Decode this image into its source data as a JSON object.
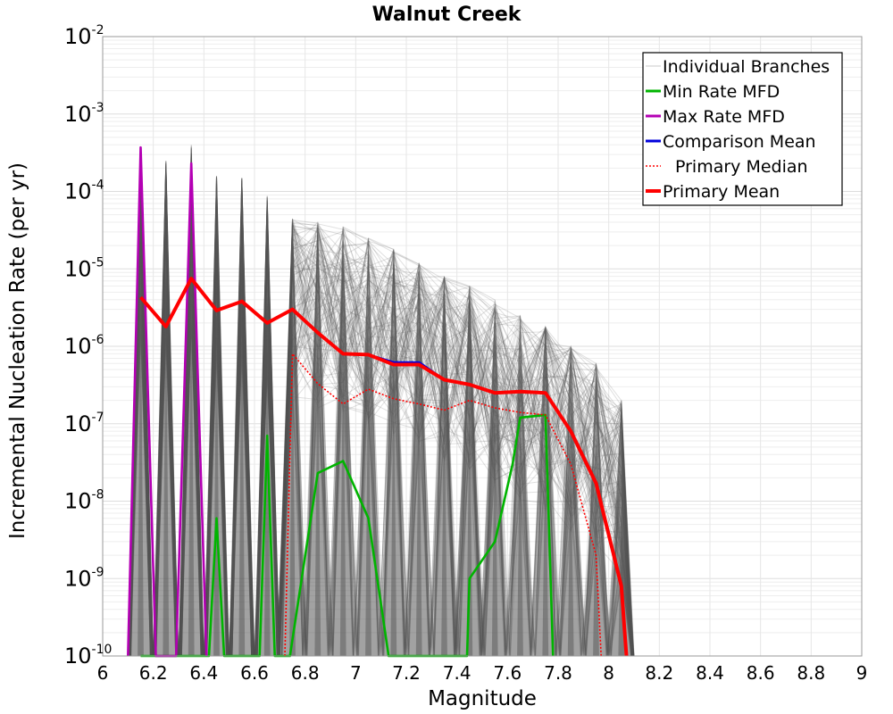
{
  "chart_data": {
    "type": "line",
    "title": "Walnut Creek",
    "xlabel": "Magnitude",
    "ylabel": "Incremental Nucleation Rate (per yr)",
    "xlim": [
      6,
      9
    ],
    "ylim": [
      1e-10,
      0.01
    ],
    "yscale": "log",
    "grid": true,
    "legend_position": "top-right",
    "x_ticks": [
      "6",
      "6.2",
      "6.4",
      "6.6",
      "6.8",
      "7",
      "7.2",
      "7.4",
      "7.6",
      "7.8",
      "8",
      "8.2",
      "8.4",
      "8.6",
      "8.8",
      "9"
    ],
    "y_ticks": [
      {
        "base": "10",
        "exp": "-2",
        "value": 0.01
      },
      {
        "base": "10",
        "exp": "-3",
        "value": 0.001
      },
      {
        "base": "10",
        "exp": "-4",
        "value": 0.0001
      },
      {
        "base": "10",
        "exp": "-5",
        "value": 1e-05
      },
      {
        "base": "10",
        "exp": "-6",
        "value": 1e-06
      },
      {
        "base": "10",
        "exp": "-7",
        "value": 1e-07
      },
      {
        "base": "10",
        "exp": "-8",
        "value": 1e-08
      },
      {
        "base": "10",
        "exp": "-9",
        "value": 1e-09
      },
      {
        "base": "10",
        "exp": "-10",
        "value": 1e-10
      }
    ],
    "legend": [
      {
        "label": "Individual Branches",
        "color": "#c8c8c8",
        "style": "solid"
      },
      {
        "label": "Min Rate MFD",
        "color": "#00b400",
        "style": "solid"
      },
      {
        "label": "Max Rate MFD",
        "color": "#b400b4",
        "style": "solid"
      },
      {
        "label": "Comparison Mean",
        "color": "#0000dc",
        "style": "solid"
      },
      {
        "label": "Primary Median",
        "color": "#ff0000",
        "style": "dotted"
      },
      {
        "label": "Primary Mean",
        "color": "#ff0000",
        "style": "thick"
      }
    ],
    "branch_envelope": {
      "color": "#555555",
      "x": [
        6.15,
        6.25,
        6.35,
        6.45,
        6.55,
        6.65,
        6.75,
        6.85,
        6.95,
        7.05,
        7.15,
        7.25,
        7.35,
        7.45,
        7.55,
        7.65,
        7.75,
        7.85,
        7.95,
        8.05
      ],
      "upper": [
        0.00035,
        0.00025,
        0.0004,
        0.00016,
        0.00015,
        9e-05,
        4.5e-05,
        4e-05,
        3.5e-05,
        2.5e-05,
        1.8e-05,
        1.2e-05,
        8e-06,
        6e-06,
        4e-06,
        2.5e-06,
        1.8e-06,
        1e-06,
        6e-07,
        2e-07
      ],
      "floor": 1e-10
    },
    "series": [
      {
        "name": "Min Rate MFD",
        "color": "#00b400",
        "x": [
          6.15,
          6.25,
          6.35,
          6.42,
          6.45,
          6.48,
          6.62,
          6.65,
          6.68,
          6.74,
          6.85,
          6.95,
          7.05,
          7.13,
          7.44,
          7.45,
          7.55,
          7.62,
          7.65,
          7.75,
          7.78
        ],
        "values": [
          1e-10,
          1e-10,
          1e-10,
          1e-10,
          6e-09,
          1e-10,
          1e-10,
          7e-08,
          1e-10,
          1e-10,
          2.3e-08,
          3.3e-08,
          6e-09,
          1e-10,
          1e-10,
          1e-09,
          3e-09,
          3e-08,
          1.2e-07,
          1.3e-07,
          1e-10
        ]
      },
      {
        "name": "Max Rate MFD",
        "color": "#b400b4",
        "x": [
          6.1,
          6.15,
          6.21,
          6.29,
          6.35,
          6.41
        ],
        "values": [
          1e-10,
          0.00037,
          1e-10,
          1e-10,
          0.00023,
          1e-10
        ]
      },
      {
        "name": "Comparison Mean",
        "color": "#0000dc",
        "x": [
          6.15,
          6.25,
          6.35,
          6.45,
          6.55,
          6.65,
          6.75,
          6.85,
          6.95,
          7.05,
          7.15,
          7.25,
          7.35,
          7.45,
          7.55,
          7.65,
          7.75,
          7.85,
          7.95,
          8.05,
          8.07
        ],
        "values": [
          4.3e-06,
          1.8e-06,
          7.5e-06,
          2.9e-06,
          3.8e-06,
          2e-06,
          3e-06,
          1.5e-06,
          8e-07,
          7.8e-07,
          6.2e-07,
          6.2e-07,
          3.7e-07,
          3.2e-07,
          2.5e-07,
          2.6e-07,
          2.5e-07,
          8e-08,
          1.7e-08,
          8e-10,
          1e-10
        ]
      },
      {
        "name": "Primary Median",
        "color": "#ff0000",
        "x": [
          6.72,
          6.75,
          6.85,
          6.95,
          7.05,
          7.15,
          7.25,
          7.35,
          7.45,
          7.55,
          7.65,
          7.75,
          7.85,
          7.95,
          7.97
        ],
        "values": [
          1e-10,
          8e-07,
          3.3e-07,
          1.8e-07,
          2.8e-07,
          2.1e-07,
          1.8e-07,
          1.5e-07,
          2e-07,
          1.6e-07,
          1.4e-07,
          1.3e-07,
          3e-08,
          2e-09,
          1e-10
        ]
      },
      {
        "name": "Primary Mean",
        "color": "#ff0000",
        "x": [
          6.15,
          6.25,
          6.35,
          6.45,
          6.55,
          6.65,
          6.75,
          6.85,
          6.95,
          7.05,
          7.15,
          7.25,
          7.35,
          7.45,
          7.55,
          7.65,
          7.75,
          7.85,
          7.95,
          8.05,
          8.07
        ],
        "values": [
          4.3e-06,
          1.8e-06,
          7.5e-06,
          2.9e-06,
          3.8e-06,
          2e-06,
          3e-06,
          1.5e-06,
          8e-07,
          7.8e-07,
          5.8e-07,
          5.8e-07,
          3.7e-07,
          3.2e-07,
          2.5e-07,
          2.6e-07,
          2.5e-07,
          8e-08,
          1.7e-08,
          8e-10,
          1e-10
        ]
      }
    ]
  }
}
